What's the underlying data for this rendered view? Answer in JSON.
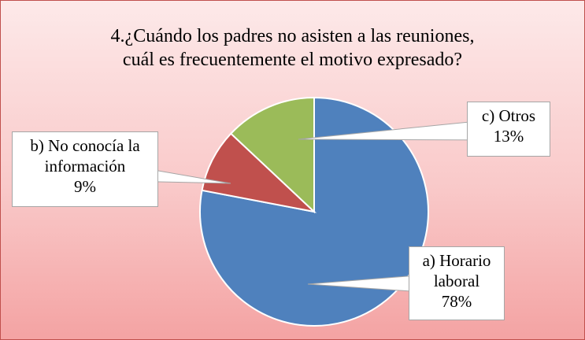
{
  "chart_data": {
    "type": "pie",
    "title": [
      "4.¿Cuándo los padres no asisten a las reuniones,",
      "cuál es frecuentemente el motivo expresado?"
    ],
    "categories": [
      "a) Horario laboral",
      "b) No conocía la información",
      "c) Otros"
    ],
    "values": [
      78,
      9,
      13
    ],
    "value_labels": [
      "78%",
      "9%",
      "13%"
    ],
    "colors": [
      "#4f81bd",
      "#c0504d",
      "#9bbb59"
    ]
  }
}
